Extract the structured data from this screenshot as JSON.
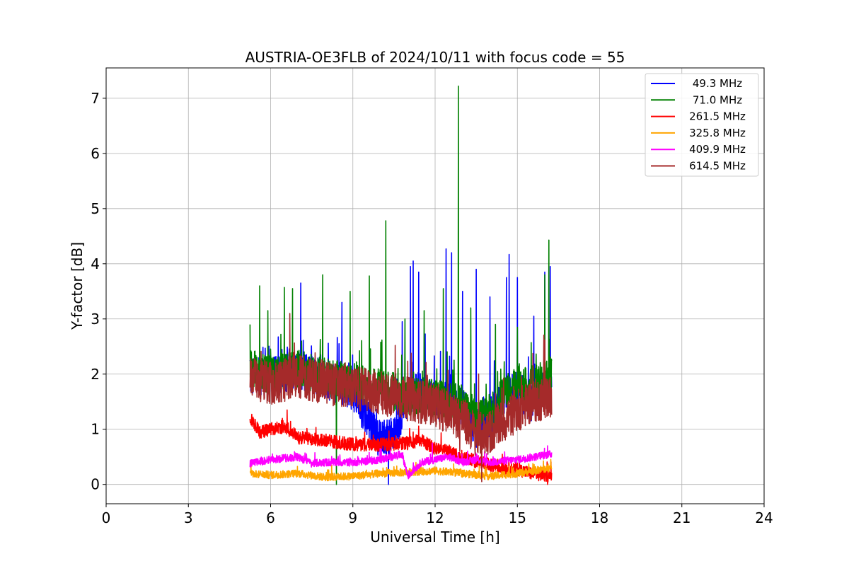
{
  "chart_data": {
    "type": "line",
    "title": "AUSTRIA-OE3FLB of 2024/10/11 with focus code = 55",
    "xlabel": "Universal Time [h]",
    "ylabel": "Y-factor [dB]",
    "xlim": [
      0,
      24
    ],
    "ylim": [
      -0.35,
      7.55
    ],
    "xticks": [
      0,
      3,
      6,
      9,
      12,
      15,
      18,
      21,
      24
    ],
    "yticks": [
      0,
      1,
      2,
      3,
      4,
      5,
      6,
      7
    ],
    "grid": true,
    "legend_position": "top-right",
    "x_range_of_data": [
      5.25,
      16.25
    ],
    "series": [
      {
        "name": "49.3 MHz",
        "color": "#0000ff",
        "baseline": [
          [
            5.25,
            2.0
          ],
          [
            6.0,
            1.95
          ],
          [
            7.0,
            2.1
          ],
          [
            8.0,
            1.9
          ],
          [
            9.0,
            1.7
          ],
          [
            9.5,
            1.2
          ],
          [
            10.0,
            0.8
          ],
          [
            10.5,
            0.9
          ],
          [
            11.0,
            1.6
          ],
          [
            11.5,
            1.7
          ],
          [
            12.0,
            1.5
          ],
          [
            12.5,
            1.6
          ],
          [
            13.0,
            1.4
          ],
          [
            13.5,
            1.0
          ],
          [
            14.0,
            1.2
          ],
          [
            14.5,
            1.6
          ],
          [
            15.0,
            1.7
          ],
          [
            15.5,
            1.5
          ],
          [
            16.25,
            1.8
          ]
        ],
        "noise": 0.35,
        "peaks": [
          [
            7.1,
            3.65
          ],
          [
            8.6,
            3.3
          ],
          [
            10.8,
            2.95
          ],
          [
            11.1,
            3.95
          ],
          [
            11.2,
            4.05
          ],
          [
            11.4,
            3.85
          ],
          [
            12.4,
            4.27
          ],
          [
            12.6,
            4.2
          ],
          [
            13.0,
            3.5
          ],
          [
            13.5,
            3.9
          ],
          [
            14.0,
            3.4
          ],
          [
            14.6,
            3.75
          ],
          [
            14.7,
            4.17
          ],
          [
            15.0,
            3.75
          ],
          [
            15.6,
            3.05
          ],
          [
            16.0,
            3.85
          ],
          [
            16.2,
            3.95
          ],
          [
            10.3,
            0.0
          ]
        ]
      },
      {
        "name": "71.0 MHz",
        "color": "#008000",
        "baseline": [
          [
            5.25,
            2.1
          ],
          [
            6.0,
            2.0
          ],
          [
            7.0,
            2.1
          ],
          [
            8.0,
            1.95
          ],
          [
            9.0,
            1.85
          ],
          [
            10.0,
            1.75
          ],
          [
            11.0,
            1.6
          ],
          [
            12.0,
            1.55
          ],
          [
            13.0,
            1.5
          ],
          [
            13.5,
            1.2
          ],
          [
            14.0,
            1.3
          ],
          [
            14.5,
            1.6
          ],
          [
            15.0,
            1.8
          ],
          [
            15.5,
            1.8
          ],
          [
            16.25,
            1.95
          ]
        ],
        "noise": 0.35,
        "peaks": [
          [
            5.25,
            2.9
          ],
          [
            5.6,
            3.6
          ],
          [
            5.9,
            3.15
          ],
          [
            6.5,
            3.57
          ],
          [
            6.8,
            3.55
          ],
          [
            7.9,
            3.8
          ],
          [
            8.4,
            3.25
          ],
          [
            8.9,
            3.5
          ],
          [
            9.6,
            3.78
          ],
          [
            10.2,
            4.78
          ],
          [
            10.9,
            3.0
          ],
          [
            11.6,
            3.15
          ],
          [
            12.3,
            3.55
          ],
          [
            12.85,
            7.22
          ],
          [
            13.3,
            3.2
          ],
          [
            14.2,
            2.9
          ],
          [
            15.0,
            2.85
          ],
          [
            16.0,
            3.8
          ],
          [
            16.15,
            4.43
          ],
          [
            8.4,
            0.0
          ]
        ]
      },
      {
        "name": "261.5 MHz",
        "color": "#ff0000",
        "baseline": [
          [
            5.25,
            1.2
          ],
          [
            5.6,
            0.95
          ],
          [
            6.0,
            1.0
          ],
          [
            6.5,
            1.05
          ],
          [
            7.0,
            0.85
          ],
          [
            8.0,
            0.8
          ],
          [
            9.0,
            0.72
          ],
          [
            10.0,
            0.72
          ],
          [
            11.0,
            0.75
          ],
          [
            11.5,
            0.8
          ],
          [
            12.0,
            0.65
          ],
          [
            12.5,
            0.6
          ],
          [
            13.0,
            0.5
          ],
          [
            13.5,
            0.42
          ],
          [
            14.0,
            0.35
          ],
          [
            14.5,
            0.3
          ],
          [
            15.0,
            0.28
          ],
          [
            15.5,
            0.2
          ],
          [
            16.25,
            0.15
          ]
        ],
        "noise": 0.12,
        "peaks": [
          [
            6.6,
            1.35
          ],
          [
            11.2,
            0.95
          ],
          [
            16.1,
            0.0
          ]
        ]
      },
      {
        "name": "325.8 MHz",
        "color": "#ffa500",
        "baseline": [
          [
            5.25,
            0.2
          ],
          [
            6.0,
            0.17
          ],
          [
            7.0,
            0.2
          ],
          [
            8.0,
            0.13
          ],
          [
            9.0,
            0.15
          ],
          [
            10.0,
            0.2
          ],
          [
            11.0,
            0.22
          ],
          [
            12.0,
            0.25
          ],
          [
            13.0,
            0.2
          ],
          [
            14.0,
            0.15
          ],
          [
            15.0,
            0.2
          ],
          [
            16.25,
            0.3
          ]
        ],
        "noise": 0.07,
        "peaks": [
          [
            11.3,
            0.4
          ]
        ]
      },
      {
        "name": "409.9 MHz",
        "color": "#ff00ff",
        "baseline": [
          [
            5.25,
            0.38
          ],
          [
            6.0,
            0.45
          ],
          [
            7.0,
            0.5
          ],
          [
            7.5,
            0.38
          ],
          [
            8.0,
            0.4
          ],
          [
            9.0,
            0.4
          ],
          [
            10.0,
            0.45
          ],
          [
            10.8,
            0.55
          ],
          [
            11.0,
            0.15
          ],
          [
            11.5,
            0.4
          ],
          [
            12.0,
            0.45
          ],
          [
            12.5,
            0.5
          ],
          [
            13.0,
            0.4
          ],
          [
            13.5,
            0.45
          ],
          [
            14.0,
            0.4
          ],
          [
            15.0,
            0.45
          ],
          [
            16.25,
            0.55
          ]
        ],
        "noise": 0.07,
        "peaks": [
          [
            11.9,
            0.75
          ],
          [
            16.1,
            0.7
          ]
        ]
      },
      {
        "name": "614.5 MHz",
        "color": "#a52a2a",
        "baseline": [
          [
            5.25,
            1.9
          ],
          [
            6.0,
            1.85
          ],
          [
            7.0,
            1.95
          ],
          [
            8.0,
            1.85
          ],
          [
            9.0,
            1.75
          ],
          [
            10.0,
            1.65
          ],
          [
            11.0,
            1.55
          ],
          [
            12.0,
            1.45
          ],
          [
            12.5,
            1.3
          ],
          [
            13.0,
            1.2
          ],
          [
            13.5,
            0.9
          ],
          [
            14.0,
            0.95
          ],
          [
            14.5,
            1.15
          ],
          [
            15.0,
            1.35
          ],
          [
            15.5,
            1.5
          ],
          [
            16.25,
            1.6
          ]
        ],
        "noise": 0.4,
        "peaks": [
          [
            6.7,
            3.1
          ],
          [
            12.9,
            0.6
          ],
          [
            13.7,
            0.05
          ]
        ]
      }
    ]
  }
}
